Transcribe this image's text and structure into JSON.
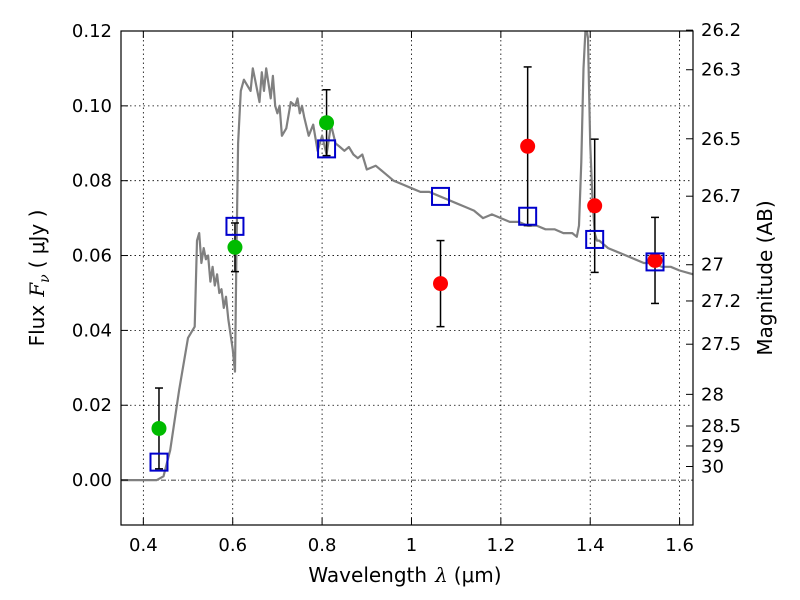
{
  "chart_data": {
    "type": "scatter",
    "xlabel_text": "Wavelength",
    "xlabel_symbol": "λ",
    "xlabel_unit": "(μm)",
    "ylabel_text": "Flux",
    "ylabel_symbol": "F",
    "ylabel_subscript": "ν",
    "ylabel_unit": "( μJy )",
    "y2label": "Magnitude (AB)",
    "xlim": [
      0.35,
      1.63
    ],
    "ylim": [
      -0.012,
      0.12
    ],
    "grid": true,
    "x_ticks": [
      {
        "value": 0.4,
        "label": "0.4"
      },
      {
        "value": 0.6,
        "label": "0.6"
      },
      {
        "value": 0.8,
        "label": "0.8"
      },
      {
        "value": 1.0,
        "label": "1"
      },
      {
        "value": 1.2,
        "label": "1.2"
      },
      {
        "value": 1.4,
        "label": "1.4"
      },
      {
        "value": 1.6,
        "label": "1.6"
      }
    ],
    "y_ticks": [
      {
        "value": 0.0,
        "label": "0.00"
      },
      {
        "value": 0.02,
        "label": "0.02"
      },
      {
        "value": 0.04,
        "label": "0.04"
      },
      {
        "value": 0.06,
        "label": "0.06"
      },
      {
        "value": 0.08,
        "label": "0.08"
      },
      {
        "value": 0.1,
        "label": "0.10"
      },
      {
        "value": 0.12,
        "label": "0.12"
      }
    ],
    "y2_ticks": [
      {
        "value": 26.2,
        "label": "26.2"
      },
      {
        "value": 26.3,
        "label": "26.3"
      },
      {
        "value": 26.5,
        "label": "26.5"
      },
      {
        "value": 26.7,
        "label": "26.7"
      },
      {
        "value": 27.0,
        "label": "27"
      },
      {
        "value": 27.2,
        "label": "27.2"
      },
      {
        "value": 27.5,
        "label": "27.5"
      },
      {
        "value": 28.0,
        "label": "28"
      },
      {
        "value": 28.5,
        "label": "28.5"
      },
      {
        "value": 29.0,
        "label": "29"
      },
      {
        "value": 30.0,
        "label": "30"
      }
    ],
    "model_sed": {
      "color": "#808080",
      "x": [
        0.35,
        0.43,
        0.445,
        0.46,
        0.48,
        0.5,
        0.515,
        0.52,
        0.525,
        0.53,
        0.535,
        0.54,
        0.545,
        0.55,
        0.555,
        0.56,
        0.565,
        0.57,
        0.575,
        0.58,
        0.585,
        0.59,
        0.595,
        0.6,
        0.605,
        0.608,
        0.612,
        0.618,
        0.625,
        0.63,
        0.64,
        0.645,
        0.65,
        0.655,
        0.66,
        0.665,
        0.67,
        0.675,
        0.68,
        0.685,
        0.69,
        0.695,
        0.7,
        0.705,
        0.71,
        0.72,
        0.73,
        0.74,
        0.745,
        0.75,
        0.755,
        0.76,
        0.77,
        0.78,
        0.79,
        0.8,
        0.81,
        0.82,
        0.83,
        0.84,
        0.85,
        0.86,
        0.87,
        0.88,
        0.89,
        0.9,
        0.92,
        0.94,
        0.96,
        0.98,
        1.0,
        1.02,
        1.04,
        1.06,
        1.08,
        1.1,
        1.12,
        1.14,
        1.16,
        1.18,
        1.2,
        1.22,
        1.24,
        1.26,
        1.28,
        1.3,
        1.32,
        1.34,
        1.36,
        1.37,
        1.375,
        1.38,
        1.385,
        1.39,
        1.395,
        1.4,
        1.405,
        1.41,
        1.415,
        1.42,
        1.43,
        1.44,
        1.46,
        1.48,
        1.5,
        1.52,
        1.54,
        1.56,
        1.58,
        1.6,
        1.63
      ],
      "y": [
        0.0,
        0.0,
        0.001,
        0.008,
        0.024,
        0.038,
        0.041,
        0.064,
        0.066,
        0.058,
        0.062,
        0.059,
        0.06,
        0.053,
        0.057,
        0.052,
        0.055,
        0.05,
        0.051,
        0.046,
        0.049,
        0.043,
        0.039,
        0.035,
        0.029,
        0.058,
        0.09,
        0.104,
        0.107,
        0.106,
        0.104,
        0.11,
        0.107,
        0.104,
        0.101,
        0.109,
        0.104,
        0.11,
        0.106,
        0.102,
        0.108,
        0.1,
        0.098,
        0.1,
        0.092,
        0.094,
        0.101,
        0.1,
        0.102,
        0.098,
        0.1,
        0.097,
        0.092,
        0.095,
        0.088,
        0.092,
        0.087,
        0.095,
        0.09,
        0.089,
        0.088,
        0.089,
        0.087,
        0.086,
        0.087,
        0.083,
        0.084,
        0.082,
        0.08,
        0.079,
        0.078,
        0.077,
        0.077,
        0.076,
        0.075,
        0.074,
        0.073,
        0.072,
        0.07,
        0.071,
        0.07,
        0.069,
        0.069,
        0.068,
        0.068,
        0.067,
        0.067,
        0.066,
        0.066,
        0.065,
        0.068,
        0.085,
        0.11,
        0.122,
        0.118,
        0.09,
        0.075,
        0.066,
        0.064,
        0.064,
        0.063,
        0.062,
        0.061,
        0.06,
        0.059,
        0.058,
        0.058,
        0.057,
        0.057,
        0.056,
        0.055
      ]
    },
    "series": [
      {
        "marker": "circle",
        "color": "#00bb00",
        "x": [
          0.435,
          0.605,
          0.81
        ],
        "y": [
          0.0138,
          0.0622,
          0.0955
        ],
        "yerr": [
          0.0108,
          0.0065,
          0.0088
        ]
      },
      {
        "marker": "circle",
        "color": "#ff0000",
        "x": [
          1.065,
          1.26,
          1.41,
          1.545
        ],
        "y": [
          0.0525,
          0.0892,
          0.0733,
          0.0587
        ],
        "yerr": [
          0.0115,
          0.0212,
          0.0178,
          0.0115
        ]
      },
      {
        "marker": "square",
        "color": "#0000cc",
        "x": [
          0.435,
          0.605,
          0.81,
          1.065,
          1.26,
          1.41,
          1.545
        ],
        "y": [
          0.0048,
          0.0678,
          0.0885,
          0.0758,
          0.0705,
          0.0643,
          0.0583
        ]
      }
    ]
  }
}
